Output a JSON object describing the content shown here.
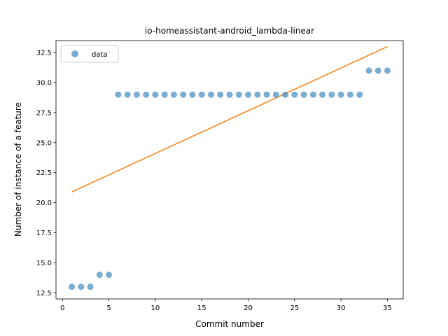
{
  "chart_data": {
    "type": "scatter",
    "title": "io-homeassistant-android_lambda-linear",
    "xlabel": "Commit number",
    "ylabel": "Number of instance of a feature",
    "xlim": [
      -0.7,
      36.7
    ],
    "ylim": [
      11.99,
      33.5
    ],
    "xticks": [
      0,
      5,
      10,
      15,
      20,
      25,
      30,
      35
    ],
    "yticks": [
      12.5,
      15.0,
      17.5,
      20.0,
      22.5,
      25.0,
      27.5,
      30.0,
      32.5
    ],
    "ytick_labels": [
      "12.5",
      "15.0",
      "17.5",
      "20.0",
      "22.5",
      "25.0",
      "27.5",
      "30.0",
      "32.5"
    ],
    "grid": false,
    "legend": {
      "placement": "upper-left",
      "entries": [
        "data"
      ]
    },
    "colors": {
      "scatter": "#1f77b4",
      "fit": "#ff7f0e"
    },
    "series": [
      {
        "name": "data",
        "kind": "scatter",
        "x": [
          1,
          2,
          3,
          4,
          5,
          6,
          7,
          8,
          9,
          10,
          11,
          12,
          13,
          14,
          15,
          16,
          17,
          18,
          19,
          20,
          21,
          22,
          23,
          24,
          25,
          26,
          27,
          28,
          29,
          30,
          31,
          32,
          33,
          34,
          35
        ],
        "y": [
          13,
          13,
          13,
          14,
          14,
          29,
          29,
          29,
          29,
          29,
          29,
          29,
          29,
          29,
          29,
          29,
          29,
          29,
          29,
          29,
          29,
          29,
          29,
          29,
          29,
          29,
          29,
          29,
          29,
          29,
          29,
          29,
          31,
          31,
          31
        ]
      },
      {
        "kind": "line",
        "x": [
          1,
          35
        ],
        "y": [
          20.9,
          33.0
        ]
      }
    ]
  }
}
